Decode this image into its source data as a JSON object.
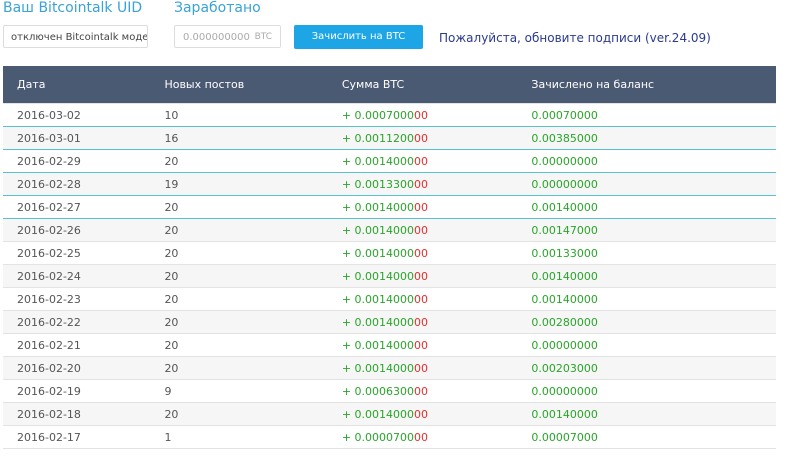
{
  "header": {
    "uid_label": "Ваш Bitcointalk UID",
    "earned_label": "Заработано",
    "uid_value": "отключен Bitcointalk модера",
    "earned_placeholder": "0.000000000",
    "earned_unit": "BTC",
    "button": "Зачислить на BTC баланс",
    "link": "Пожалуйста, обновите подписи (ver.24.09)"
  },
  "table": {
    "columns": [
      "Дата",
      "Новых постов",
      "Сумма BTC",
      "Зачислено на баланс"
    ],
    "rows": [
      {
        "date": "2016-03-02",
        "posts": "10",
        "sum": {
          "main": "+ 0.0007000",
          "tail": "00"
        },
        "credited": "0.00070000"
      },
      {
        "date": "2016-03-01",
        "posts": "16",
        "sum": {
          "main": "+ 0.0011200",
          "tail": "00"
        },
        "credited": "0.00385000"
      },
      {
        "date": "2016-02-29",
        "posts": "20",
        "sum": {
          "main": "+ 0.0014000",
          "tail": "00"
        },
        "credited": "0.00000000"
      },
      {
        "date": "2016-02-28",
        "posts": "19",
        "sum": {
          "main": "+ 0.0013300",
          "tail": "00"
        },
        "credited": "0.00000000"
      },
      {
        "date": "2016-02-27",
        "posts": "20",
        "sum": {
          "main": "+ 0.0014000",
          "tail": "00"
        },
        "credited": "0.00140000"
      },
      {
        "date": "2016-02-26",
        "posts": "20",
        "sum": {
          "main": "+ 0.0014000",
          "tail": "00"
        },
        "credited": "0.00147000"
      },
      {
        "date": "2016-02-25",
        "posts": "20",
        "sum": {
          "main": "+ 0.0014000",
          "tail": "00"
        },
        "credited": "0.00133000"
      },
      {
        "date": "2016-02-24",
        "posts": "20",
        "sum": {
          "main": "+ 0.0014000",
          "tail": "00"
        },
        "credited": "0.00140000"
      },
      {
        "date": "2016-02-23",
        "posts": "20",
        "sum": {
          "main": "+ 0.0014000",
          "tail": "00"
        },
        "credited": "0.00140000"
      },
      {
        "date": "2016-02-22",
        "posts": "20",
        "sum": {
          "main": "+ 0.0014000",
          "tail": "00"
        },
        "credited": "0.00280000"
      },
      {
        "date": "2016-02-21",
        "posts": "20",
        "sum": {
          "main": "+ 0.0014000",
          "tail": "00"
        },
        "credited": "0.00000000"
      },
      {
        "date": "2016-02-20",
        "posts": "20",
        "sum": {
          "main": "+ 0.0014000",
          "tail": "00"
        },
        "credited": "0.00203000"
      },
      {
        "date": "2016-02-19",
        "posts": "9",
        "sum": {
          "main": "+ 0.0006300",
          "tail": "00"
        },
        "credited": "0.00000000"
      },
      {
        "date": "2016-02-18",
        "posts": "20",
        "sum": {
          "main": "+ 0.0014000",
          "tail": "00"
        },
        "credited": "0.00140000"
      },
      {
        "date": "2016-02-17",
        "posts": "1",
        "sum": {
          "main": "+ 0.0000700",
          "tail": "00"
        },
        "credited": "0.00007000"
      }
    ]
  }
}
